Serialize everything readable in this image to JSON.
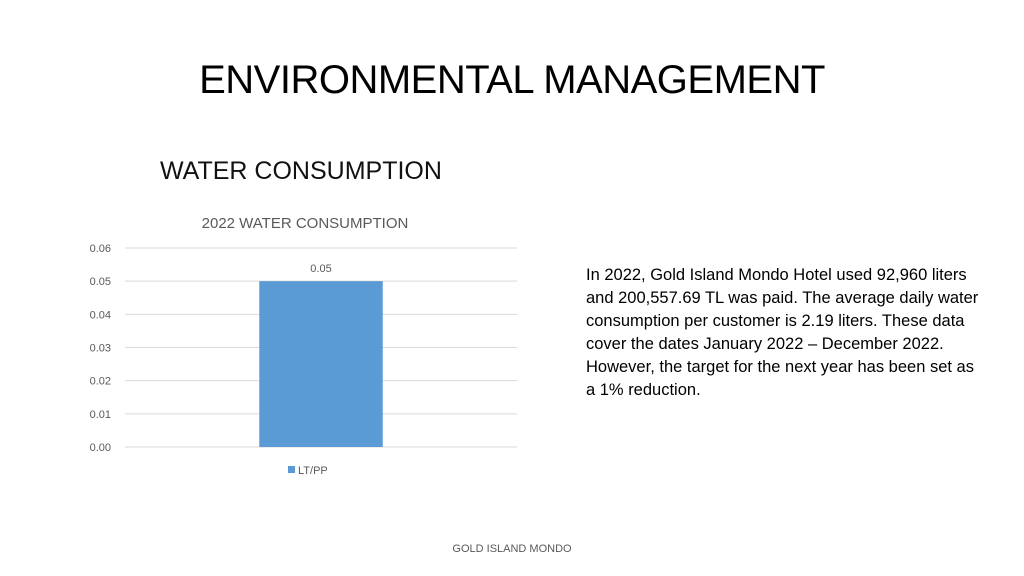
{
  "slide": {
    "title": "ENVIRONMENTAL MANAGEMENT",
    "subtitle": "WATER CONSUMPTION",
    "body": "In 2022, Gold Island Mondo Hotel used 92,960 liters and 200,557.69 TL was paid. The average daily water consumption per customer is 2.19 liters. These data cover the dates January 2022 – December 2022. However, the target for the next year has been set as a 1% reduction.",
    "footer": "GOLD ISLAND MONDO"
  },
  "chart_data": {
    "type": "bar",
    "title": "2022 WATER CONSUMPTION",
    "categories": [
      ""
    ],
    "series": [
      {
        "name": "LT/PP",
        "values": [
          0.05
        ],
        "color": "#5b9bd5"
      }
    ],
    "data_labels": [
      "0.05"
    ],
    "y_ticks": [
      "0.00",
      "0.01",
      "0.02",
      "0.03",
      "0.04",
      "0.05",
      "0.06"
    ],
    "ylim": [
      0,
      0.06
    ],
    "grid": true,
    "legend": "bottom",
    "colors": {
      "grid": "#d9d9d9",
      "text": "#595959"
    }
  }
}
